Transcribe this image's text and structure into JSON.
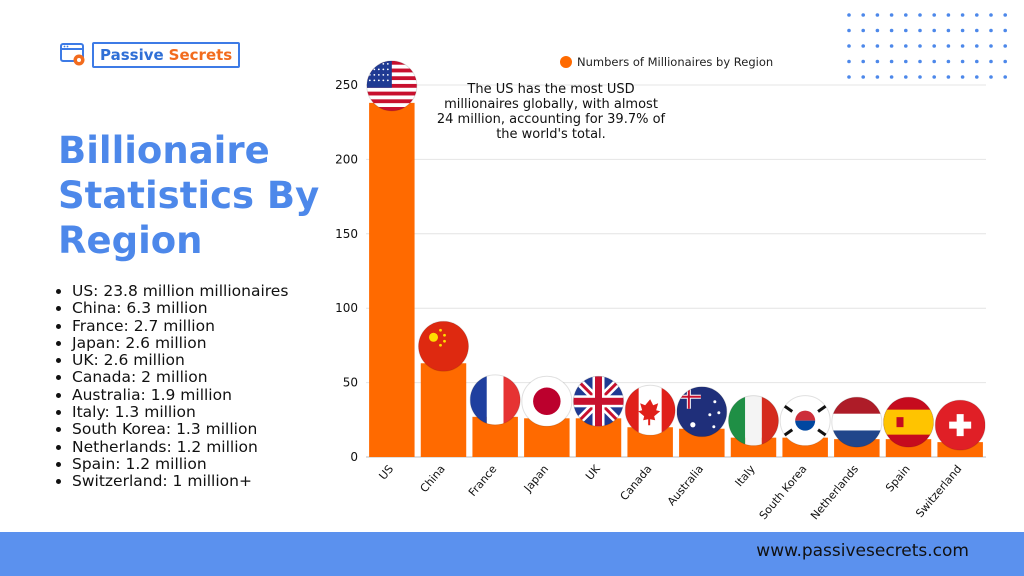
{
  "brand": {
    "word1": "Passive",
    "word2": "Secrets"
  },
  "title": "Billionaire Statistics By Region",
  "stats": [
    "US: 23.8 million millionaires",
    "China: 6.3 million",
    "France: 2.7 million",
    "Japan: 2.6 million",
    "UK: 2.6 million",
    "Canada: 2 million",
    "Australia: 1.9 million",
    "Italy: 1.3 million",
    "South Korea: 1.3 million",
    "Netherlands: 1.2 million",
    "Spain: 1.2 million",
    "Switzerland: 1 million+"
  ],
  "footer": {
    "url": "www.passivesecrets.com"
  },
  "colors": {
    "bar": "#ff6a00",
    "title": "#4d88ea",
    "footer": "#5b91ee",
    "brand_blue": "#2f6fd6",
    "brand_orange": "#f26b1d"
  },
  "chart_data": {
    "type": "bar",
    "categories": [
      "US",
      "China",
      "France",
      "Japan",
      "UK",
      "Canada",
      "Australia",
      "Italy",
      "South Korea",
      "Netherlands",
      "Spain",
      "Switzerland"
    ],
    "series": [
      {
        "name": "Numbers of Millionaires by Region",
        "values": [
          238,
          63,
          27,
          26,
          26,
          20,
          19,
          13,
          13,
          12,
          12,
          10
        ]
      }
    ],
    "ylim": [
      0,
      250
    ],
    "yticks": [
      0,
      50,
      100,
      150,
      200,
      250
    ],
    "grid": true,
    "legend": "top",
    "annotation": [
      "The US has the most USD",
      "millionaires globally, with almost",
      "24 million, accounting for 39.7% of",
      "the world's total."
    ],
    "flag_icons": [
      "us-flag-icon",
      "china-flag-icon",
      "france-flag-icon",
      "japan-flag-icon",
      "uk-flag-icon",
      "canada-flag-icon",
      "australia-flag-icon",
      "italy-flag-icon",
      "south-korea-flag-icon",
      "netherlands-flag-icon",
      "spain-flag-icon",
      "switzerland-flag-icon"
    ]
  }
}
